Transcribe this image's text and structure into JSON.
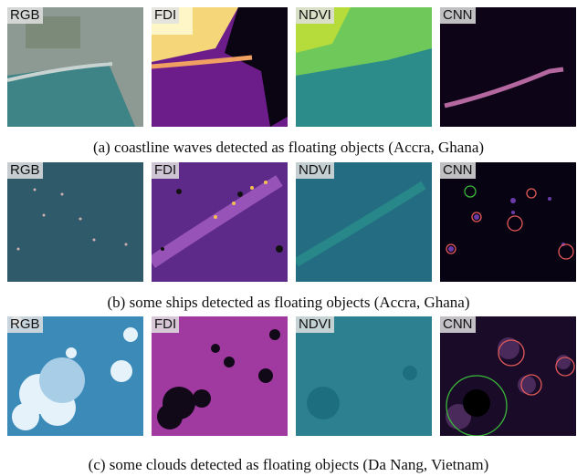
{
  "rows": [
    {
      "panels": [
        "RGB",
        "FDI",
        "NDVI",
        "CNN"
      ],
      "caption": "(a) coastline waves detected as floating objects (Accra, Ghana)"
    },
    {
      "panels": [
        "RGB",
        "FDI",
        "NDVI",
        "CNN"
      ],
      "caption": "(b) some ships detected as floating objects (Accra, Ghana)"
    },
    {
      "panels": [
        "RGB",
        "FDI",
        "NDVI",
        "CNN"
      ],
      "caption": "(c) some clouds detected as floating objects (Da Nang, Vietnam)"
    }
  ]
}
